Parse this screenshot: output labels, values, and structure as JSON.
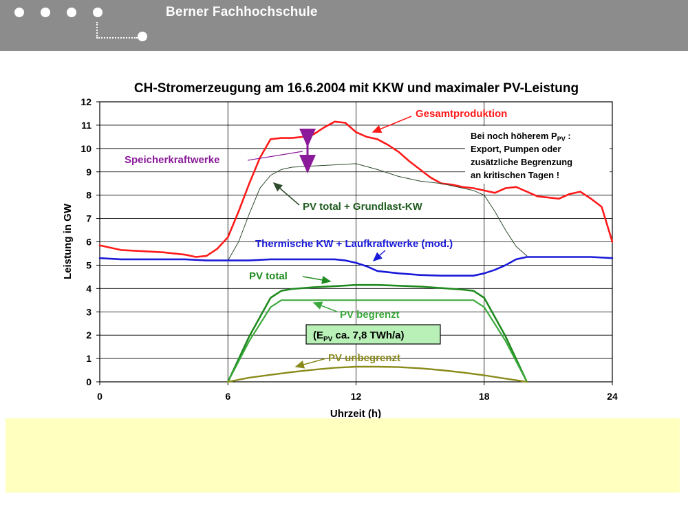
{
  "header": {
    "title": "Berner Fachhochschule",
    "dots": [
      "dot-1",
      "dot-2",
      "dot-3",
      "dot-4",
      "dot-5"
    ]
  },
  "colors": {
    "header_bg": "#8c8c8c",
    "gesamt": "#ff1a1a",
    "thermisch": "#1a1ad9",
    "pv_total": "#1f8a1f",
    "pv_begrenzt": "#3aa83a",
    "pv_unbegrenzt": "#8a8a1a",
    "grundlast": "#2d4a2d",
    "speicher": "#8a1a9a",
    "note_bg": "#ffffc0"
  },
  "chart_data": {
    "type": "line",
    "title": "CH-Stromerzeugung am 16.6.2004 mit KKW und maximaler PV-Leistung",
    "xlabel": "Uhrzeit (h)",
    "ylabel": "Leistung in GW",
    "xlim": [
      0,
      24
    ],
    "ylim": [
      0,
      12
    ],
    "xticks": [
      0,
      6,
      12,
      18,
      24
    ],
    "yticks": [
      0,
      1,
      2,
      3,
      4,
      5,
      6,
      7,
      8,
      9,
      10,
      11,
      12
    ],
    "grid": {
      "vertical": true,
      "horizontal": true
    },
    "series": [
      {
        "name": "Gesamtproduktion",
        "key": "gesamt",
        "x": [
          0,
          1,
          2,
          3,
          4,
          4.5,
          5,
          5.5,
          6,
          6.5,
          7,
          7.5,
          8,
          8.5,
          9,
          9.5,
          10,
          10.5,
          11,
          11.5,
          12,
          12.5,
          13,
          13.5,
          14,
          14.5,
          15,
          15.5,
          16,
          16.5,
          17,
          17.5,
          18,
          18.5,
          19,
          19.5,
          20,
          20.5,
          21,
          21.5,
          22,
          22.5,
          23,
          23.5,
          24
        ],
        "y": [
          5.85,
          5.65,
          5.6,
          5.55,
          5.45,
          5.35,
          5.4,
          5.7,
          6.2,
          7.3,
          8.5,
          9.6,
          10.4,
          10.45,
          10.45,
          10.5,
          10.6,
          10.9,
          11.15,
          11.1,
          10.7,
          10.5,
          10.4,
          10.15,
          9.85,
          9.45,
          9.1,
          8.75,
          8.5,
          8.45,
          8.35,
          8.3,
          8.2,
          8.1,
          8.3,
          8.35,
          8.15,
          7.95,
          7.9,
          7.85,
          8.05,
          8.15,
          7.85,
          7.5,
          6.0
        ]
      },
      {
        "name": "PV total + Grundlast-KW",
        "key": "grundlast",
        "x": [
          6,
          6.5,
          7,
          7.5,
          8,
          8.5,
          9,
          10,
          11,
          12,
          13,
          14,
          15,
          16,
          17,
          17.5,
          18,
          18.5,
          19,
          19.5,
          20
        ],
        "y": [
          5.2,
          6.0,
          7.2,
          8.3,
          8.85,
          9.1,
          9.2,
          9.25,
          9.3,
          9.35,
          9.1,
          8.8,
          8.6,
          8.5,
          8.3,
          8.2,
          8.0,
          7.3,
          6.5,
          5.8,
          5.4
        ]
      },
      {
        "name": "Thermische KW + Laufkraftwerke (mod.)",
        "key": "thermisch",
        "x": [
          0,
          1,
          2,
          3,
          4,
          5,
          6,
          7,
          8,
          9,
          10,
          11,
          11.5,
          12,
          12.5,
          13,
          14,
          15,
          16,
          17,
          17.5,
          18,
          18.5,
          19,
          19.5,
          20,
          21,
          22,
          23,
          24
        ],
        "y": [
          5.3,
          5.25,
          5.25,
          5.25,
          5.25,
          5.2,
          5.2,
          5.2,
          5.25,
          5.25,
          5.25,
          5.25,
          5.2,
          5.1,
          4.95,
          4.75,
          4.65,
          4.58,
          4.55,
          4.55,
          4.55,
          4.65,
          4.8,
          5.0,
          5.25,
          5.35,
          5.35,
          5.35,
          5.35,
          5.3
        ]
      },
      {
        "name": "PV total",
        "key": "pv_total",
        "x": [
          6,
          7,
          8,
          8.5,
          9,
          10,
          11,
          12,
          13,
          14,
          15,
          16,
          17,
          17.5,
          18,
          19,
          20
        ],
        "y": [
          0,
          1.95,
          3.6,
          3.9,
          3.98,
          4.05,
          4.1,
          4.15,
          4.15,
          4.12,
          4.08,
          4.02,
          3.95,
          3.9,
          3.6,
          1.95,
          0
        ]
      },
      {
        "name": "PV begrenzt",
        "key": "pv_begrenzt",
        "x": [
          6,
          7,
          8,
          8.5,
          9,
          17,
          17.5,
          18,
          19,
          20
        ],
        "y": [
          0,
          1.75,
          3.2,
          3.5,
          3.5,
          3.5,
          3.5,
          3.2,
          1.75,
          0
        ]
      },
      {
        "name": "PV unbegrenzt",
        "key": "pv_unbegrenzt",
        "x": [
          6,
          7,
          8,
          9,
          10,
          11,
          12,
          13,
          14,
          15,
          16,
          17,
          18,
          19,
          20
        ],
        "y": [
          0,
          0.18,
          0.3,
          0.42,
          0.52,
          0.6,
          0.65,
          0.65,
          0.63,
          0.58,
          0.5,
          0.4,
          0.28,
          0.14,
          0
        ]
      }
    ],
    "annotations": {
      "gesamt_label": "Gesamtproduktion",
      "speicher_label": "Speicherkraftwerke",
      "grundlast_label": "PV total + Grundlast-KW",
      "thermisch_label": "Thermische KW + Laufkraftwerke (mod.)",
      "pv_total_label": "PV total",
      "pv_begrenzt_label": "PV begrenzt",
      "pv_unbegrenzt_label": "PV unbegrenzt",
      "epv_prefix": "(E",
      "epv_sub": "PV",
      "epv_suffix": " ca. 7,8 TWh/a)",
      "note_line1_a": "Bei noch höherem P",
      "note_line1_sub": "PV",
      "note_line1_b": " :",
      "note_line2": "Export, Pumpen oder",
      "note_line3": "zusätzliche Begrenzung",
      "note_line4": "an kritischen Tagen !"
    }
  }
}
